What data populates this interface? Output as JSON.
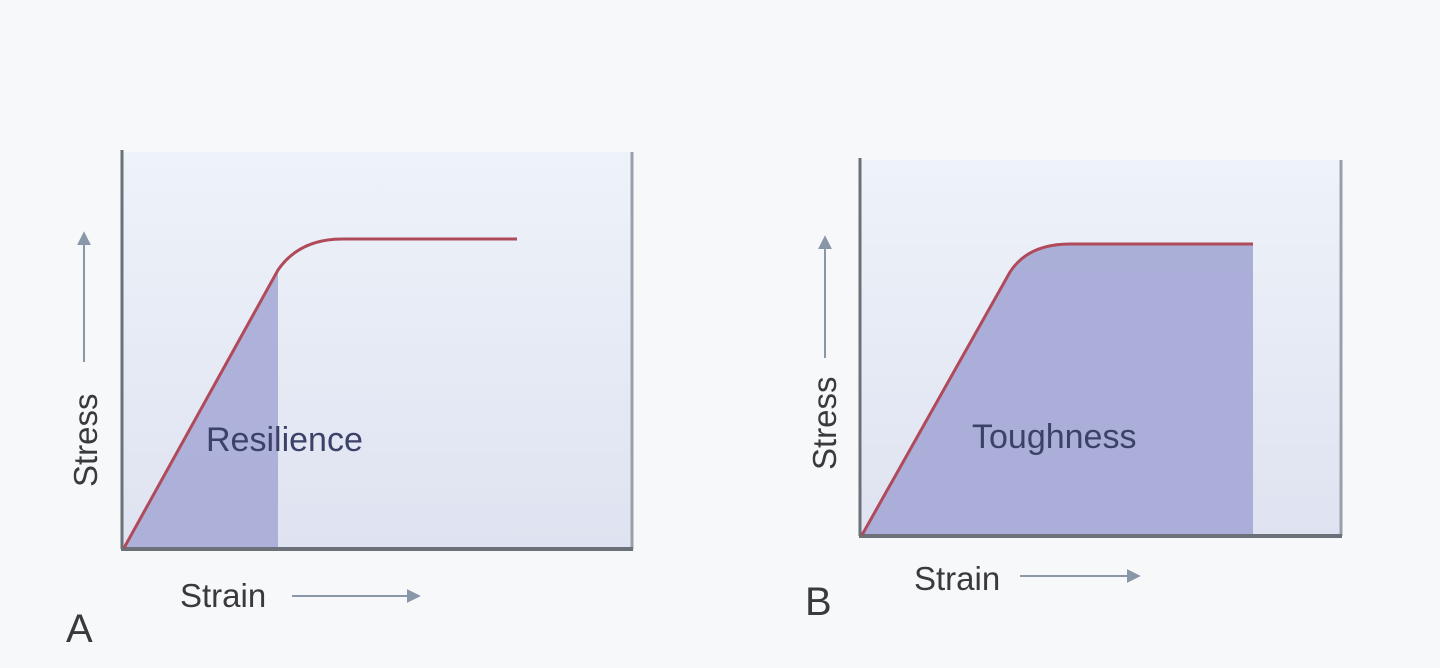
{
  "panels": [
    {
      "letter": "A",
      "y_label": "Stress",
      "x_label": "Strain",
      "region_label": "Resilience",
      "shaded_region": "elastic-portion"
    },
    {
      "letter": "B",
      "y_label": "Stress",
      "x_label": "Strain",
      "region_label": "Toughness",
      "shaded_region": "entire-curve"
    }
  ],
  "colors": {
    "curve": "#b04a5a",
    "plot_bg": "#e8edf6",
    "shade": "#a7abd6",
    "frame": "#6b7079",
    "arrow": "#8a97a8",
    "text": "#3a3a3c",
    "region_text": "#3b4168"
  }
}
